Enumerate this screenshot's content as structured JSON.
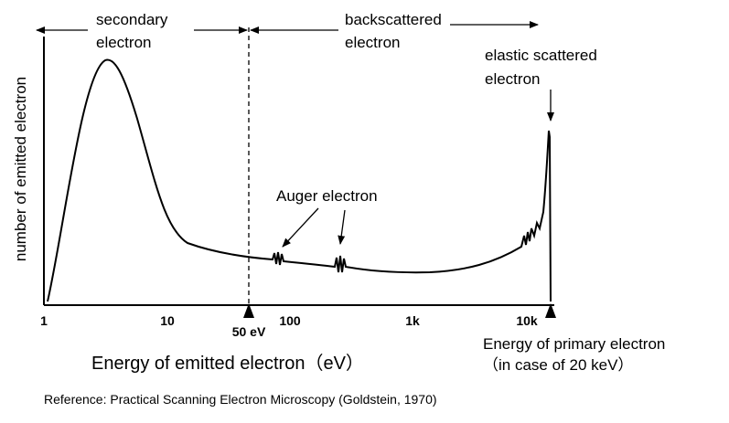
{
  "regions": {
    "secondary": [
      "secondary",
      "electron"
    ],
    "backscattered": [
      "backscattered",
      "electron"
    ],
    "elastic": [
      "elastic scattered",
      "electron"
    ]
  },
  "y_axis_label": "number of emitted electron",
  "auger_label": "Auger electron",
  "x_ticks": [
    "1",
    "10",
    "100",
    "1k",
    "10k"
  ],
  "boundary_label": "50 eV",
  "x_axis_label": "Energy of emitted electron（eV）",
  "primary_label": [
    "Energy of primary electron",
    "（in case of 20 keV）"
  ],
  "reference": "Reference: Practical Scanning Electron Microscopy (Goldstein, 1970)"
}
